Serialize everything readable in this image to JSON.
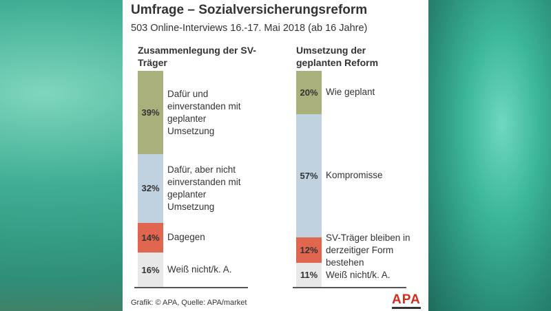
{
  "title": "Umfrage – Sozialversicherungsreform",
  "subtitle": "503 Online-Interviews 16.-17. Mai 2018 (ab 16 Jahre)",
  "source": "Grafik: © APA, Quelle: APA/market",
  "logo": "APA",
  "chart_data": [
    {
      "type": "stacked_bar",
      "title": "Zusammenlegung der SV-Träger",
      "categories": [
        null
      ],
      "series": [
        {
          "name": "Dafür und einverstanden mit geplanter Umsetzung",
          "color": "#aab07c",
          "values": [
            39
          ],
          "value_labels": [
            "39%"
          ]
        },
        {
          "name": "Dafür, aber nicht einverstanden mit geplanter Umsetzung",
          "color": "#c0d1df",
          "values": [
            32
          ],
          "value_labels": [
            "32%"
          ]
        },
        {
          "name": "Dagegen",
          "color": "#e0664f",
          "values": [
            14
          ],
          "value_labels": [
            "14%"
          ]
        },
        {
          "name": "Weiß nicht/k. A.",
          "color": "#e8e8e8",
          "values": [
            16
          ],
          "value_labels": [
            "16%"
          ]
        }
      ]
    },
    {
      "type": "stacked_bar",
      "title": "Umsetzung der geplanten Reform",
      "categories": [
        null
      ],
      "series": [
        {
          "name": "Wie geplant",
          "color": "#aab07c",
          "values": [
            20
          ],
          "value_labels": [
            "20%"
          ]
        },
        {
          "name": "Kompromisse",
          "color": "#c0d1df",
          "values": [
            57
          ],
          "value_labels": [
            "57%"
          ]
        },
        {
          "name": "SV-Träger bleiben in derzeitiger Form bestehen",
          "color": "#e0664f",
          "values": [
            12
          ],
          "value_labels": [
            "12%"
          ]
        },
        {
          "name": "Weiß nicht/k. A.",
          "color": "#e8e8e8",
          "values": [
            11
          ],
          "value_labels": [
            "11%"
          ]
        }
      ]
    }
  ]
}
